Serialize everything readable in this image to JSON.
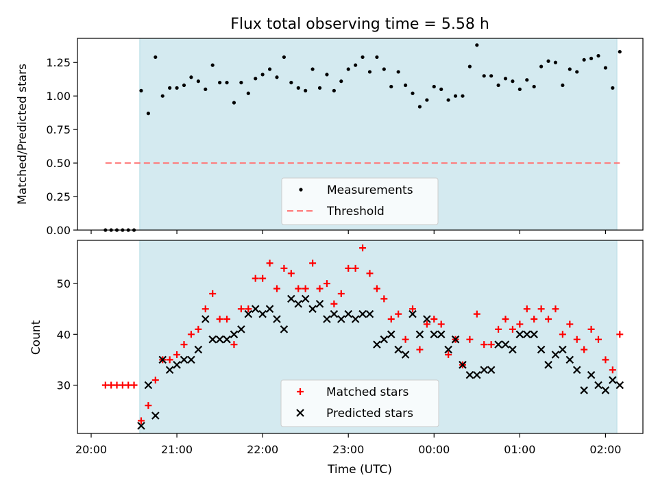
{
  "chart_data": [
    {
      "type": "scatter",
      "title": "Flux total observing time = 5.58 h",
      "ylabel": "Matched/Predicted stars",
      "xlabel": "",
      "ylim": [
        0,
        1.43
      ],
      "yticks": [
        "0.00",
        "0.25",
        "0.50",
        "0.75",
        "1.00",
        "1.25"
      ],
      "shaded_region": [
        "20:34",
        "02:08"
      ],
      "legend": {
        "position": "lower-center",
        "items": [
          "Measurements",
          "Threshold"
        ]
      },
      "series": [
        {
          "name": "Measurements",
          "marker": "dot",
          "color": "#000000",
          "points": [
            [
              "20:10",
              0.0
            ],
            [
              "20:14",
              0.0
            ],
            [
              "20:18",
              0.0
            ],
            [
              "20:22",
              0.0
            ],
            [
              "20:26",
              0.0
            ],
            [
              "20:30",
              0.0
            ],
            [
              "20:35",
              1.04
            ],
            [
              "20:40",
              0.87
            ],
            [
              "20:45",
              1.29
            ],
            [
              "20:50",
              1.0
            ],
            [
              "20:55",
              1.06
            ],
            [
              "21:00",
              1.06
            ],
            [
              "21:05",
              1.08
            ],
            [
              "21:10",
              1.14
            ],
            [
              "21:15",
              1.11
            ],
            [
              "21:20",
              1.05
            ],
            [
              "21:25",
              1.23
            ],
            [
              "21:30",
              1.1
            ],
            [
              "21:35",
              1.1
            ],
            [
              "21:40",
              0.95
            ],
            [
              "21:45",
              1.1
            ],
            [
              "21:50",
              1.02
            ],
            [
              "21:55",
              1.13
            ],
            [
              "22:00",
              1.16
            ],
            [
              "22:05",
              1.2
            ],
            [
              "22:10",
              1.14
            ],
            [
              "22:15",
              1.29
            ],
            [
              "22:20",
              1.1
            ],
            [
              "22:25",
              1.06
            ],
            [
              "22:30",
              1.04
            ],
            [
              "22:35",
              1.2
            ],
            [
              "22:40",
              1.06
            ],
            [
              "22:45",
              1.16
            ],
            [
              "22:50",
              1.04
            ],
            [
              "22:55",
              1.11
            ],
            [
              "23:00",
              1.2
            ],
            [
              "23:05",
              1.23
            ],
            [
              "23:10",
              1.29
            ],
            [
              "23:15",
              1.18
            ],
            [
              "23:20",
              1.29
            ],
            [
              "23:25",
              1.2
            ],
            [
              "23:30",
              1.07
            ],
            [
              "23:35",
              1.18
            ],
            [
              "23:40",
              1.08
            ],
            [
              "23:45",
              1.02
            ],
            [
              "23:50",
              0.92
            ],
            [
              "23:55",
              0.97
            ],
            [
              "00:00",
              1.07
            ],
            [
              "00:05",
              1.05
            ],
            [
              "00:10",
              0.97
            ],
            [
              "00:15",
              1.0
            ],
            [
              "00:20",
              1.0
            ],
            [
              "00:25",
              1.22
            ],
            [
              "00:30",
              1.38
            ],
            [
              "00:35",
              1.15
            ],
            [
              "00:40",
              1.15
            ],
            [
              "00:45",
              1.08
            ],
            [
              "00:50",
              1.13
            ],
            [
              "00:55",
              1.11
            ],
            [
              "01:00",
              1.05
            ],
            [
              "01:05",
              1.12
            ],
            [
              "01:10",
              1.07
            ],
            [
              "01:15",
              1.22
            ],
            [
              "01:20",
              1.26
            ],
            [
              "01:25",
              1.25
            ],
            [
              "01:30",
              1.08
            ],
            [
              "01:35",
              1.2
            ],
            [
              "01:40",
              1.18
            ],
            [
              "01:45",
              1.27
            ],
            [
              "01:50",
              1.28
            ],
            [
              "01:55",
              1.3
            ],
            [
              "02:00",
              1.21
            ],
            [
              "02:05",
              1.06
            ],
            [
              "02:10",
              1.33
            ]
          ]
        },
        {
          "name": "Threshold",
          "type": "line",
          "style": "dashed",
          "color": "#ff7777",
          "points": [
            [
              "20:10",
              0.5
            ],
            [
              "02:10",
              0.5
            ]
          ]
        }
      ]
    },
    {
      "type": "scatter",
      "title": "",
      "xlabel": "Time (UTC)",
      "ylabel": "Count",
      "ylim": [
        20.5,
        58.5
      ],
      "yticks": [
        "30",
        "40",
        "50"
      ],
      "xticks": [
        "20:00",
        "21:00",
        "22:00",
        "23:00",
        "00:00",
        "01:00",
        "02:00"
      ],
      "shaded_region": [
        "20:34",
        "02:08"
      ],
      "legend": {
        "position": "lower-center",
        "items": [
          "Matched stars",
          "Predicted stars"
        ]
      },
      "series": [
        {
          "name": "Matched stars",
          "marker": "plus",
          "color": "#ff0000",
          "points": [
            [
              "20:10",
              30
            ],
            [
              "20:14",
              30
            ],
            [
              "20:18",
              30
            ],
            [
              "20:22",
              30
            ],
            [
              "20:26",
              30
            ],
            [
              "20:30",
              30
            ],
            [
              "20:35",
              23
            ],
            [
              "20:40",
              26
            ],
            [
              "20:45",
              31
            ],
            [
              "20:50",
              35
            ],
            [
              "20:55",
              35
            ],
            [
              "21:00",
              36
            ],
            [
              "21:05",
              38
            ],
            [
              "21:10",
              40
            ],
            [
              "21:15",
              41
            ],
            [
              "21:20",
              45
            ],
            [
              "21:25",
              48
            ],
            [
              "21:30",
              43
            ],
            [
              "21:35",
              43
            ],
            [
              "21:40",
              38
            ],
            [
              "21:45",
              45
            ],
            [
              "21:50",
              45
            ],
            [
              "21:55",
              51
            ],
            [
              "22:00",
              51
            ],
            [
              "22:05",
              54
            ],
            [
              "22:10",
              49
            ],
            [
              "22:15",
              53
            ],
            [
              "22:20",
              52
            ],
            [
              "22:25",
              49
            ],
            [
              "22:30",
              49
            ],
            [
              "22:35",
              54
            ],
            [
              "22:40",
              49
            ],
            [
              "22:45",
              50
            ],
            [
              "22:50",
              46
            ],
            [
              "22:55",
              48
            ],
            [
              "23:00",
              53
            ],
            [
              "23:05",
              53
            ],
            [
              "23:10",
              57
            ],
            [
              "23:15",
              52
            ],
            [
              "23:20",
              49
            ],
            [
              "23:25",
              47
            ],
            [
              "23:30",
              43
            ],
            [
              "23:35",
              44
            ],
            [
              "23:40",
              39
            ],
            [
              "23:45",
              45
            ],
            [
              "23:50",
              37
            ],
            [
              "23:55",
              42
            ],
            [
              "00:00",
              43
            ],
            [
              "00:05",
              42
            ],
            [
              "00:10",
              36
            ],
            [
              "00:15",
              39
            ],
            [
              "00:20",
              34
            ],
            [
              "00:25",
              39
            ],
            [
              "00:30",
              44
            ],
            [
              "00:35",
              38
            ],
            [
              "00:40",
              38
            ],
            [
              "00:45",
              41
            ],
            [
              "00:50",
              43
            ],
            [
              "00:55",
              41
            ],
            [
              "01:00",
              42
            ],
            [
              "01:05",
              45
            ],
            [
              "01:10",
              43
            ],
            [
              "01:15",
              45
            ],
            [
              "01:20",
              43
            ],
            [
              "01:25",
              45
            ],
            [
              "01:30",
              40
            ],
            [
              "01:35",
              42
            ],
            [
              "01:40",
              39
            ],
            [
              "01:45",
              37
            ],
            [
              "01:50",
              41
            ],
            [
              "01:55",
              39
            ],
            [
              "02:00",
              35
            ],
            [
              "02:05",
              33
            ],
            [
              "02:10",
              40
            ]
          ]
        },
        {
          "name": "Predicted stars",
          "marker": "x",
          "color": "#000000",
          "points": [
            [
              "20:35",
              22
            ],
            [
              "20:40",
              30
            ],
            [
              "20:45",
              24
            ],
            [
              "20:50",
              35
            ],
            [
              "20:55",
              33
            ],
            [
              "21:00",
              34
            ],
            [
              "21:05",
              35
            ],
            [
              "21:10",
              35
            ],
            [
              "21:15",
              37
            ],
            [
              "21:20",
              43
            ],
            [
              "21:25",
              39
            ],
            [
              "21:30",
              39
            ],
            [
              "21:35",
              39
            ],
            [
              "21:40",
              40
            ],
            [
              "21:45",
              41
            ],
            [
              "21:50",
              44
            ],
            [
              "21:55",
              45
            ],
            [
              "22:00",
              44
            ],
            [
              "22:05",
              45
            ],
            [
              "22:10",
              43
            ],
            [
              "22:15",
              41
            ],
            [
              "22:20",
              47
            ],
            [
              "22:25",
              46
            ],
            [
              "22:30",
              47
            ],
            [
              "22:35",
              45
            ],
            [
              "22:40",
              46
            ],
            [
              "22:45",
              43
            ],
            [
              "22:50",
              44
            ],
            [
              "22:55",
              43
            ],
            [
              "23:00",
              44
            ],
            [
              "23:05",
              43
            ],
            [
              "23:10",
              44
            ],
            [
              "23:15",
              44
            ],
            [
              "23:20",
              38
            ],
            [
              "23:25",
              39
            ],
            [
              "23:30",
              40
            ],
            [
              "23:35",
              37
            ],
            [
              "23:40",
              36
            ],
            [
              "23:45",
              44
            ],
            [
              "23:50",
              40
            ],
            [
              "23:55",
              43
            ],
            [
              "00:00",
              40
            ],
            [
              "00:05",
              40
            ],
            [
              "00:10",
              37
            ],
            [
              "00:15",
              39
            ],
            [
              "00:20",
              34
            ],
            [
              "00:25",
              32
            ],
            [
              "00:30",
              32
            ],
            [
              "00:35",
              33
            ],
            [
              "00:40",
              33
            ],
            [
              "00:45",
              38
            ],
            [
              "00:50",
              38
            ],
            [
              "00:55",
              37
            ],
            [
              "01:00",
              40
            ],
            [
              "01:05",
              40
            ],
            [
              "01:10",
              40
            ],
            [
              "01:15",
              37
            ],
            [
              "01:20",
              34
            ],
            [
              "01:25",
              36
            ],
            [
              "01:30",
              37
            ],
            [
              "01:35",
              35
            ],
            [
              "01:40",
              33
            ],
            [
              "01:45",
              29
            ],
            [
              "01:50",
              32
            ],
            [
              "01:55",
              30
            ],
            [
              "02:00",
              29
            ],
            [
              "02:05",
              31
            ],
            [
              "02:10",
              30
            ]
          ]
        }
      ]
    }
  ],
  "colors": {
    "shade": "#d4eaf0",
    "shade_edge": "#b5dce4",
    "matched": "#ff0000",
    "threshold": "#ff7777",
    "measurements": "#000000"
  }
}
